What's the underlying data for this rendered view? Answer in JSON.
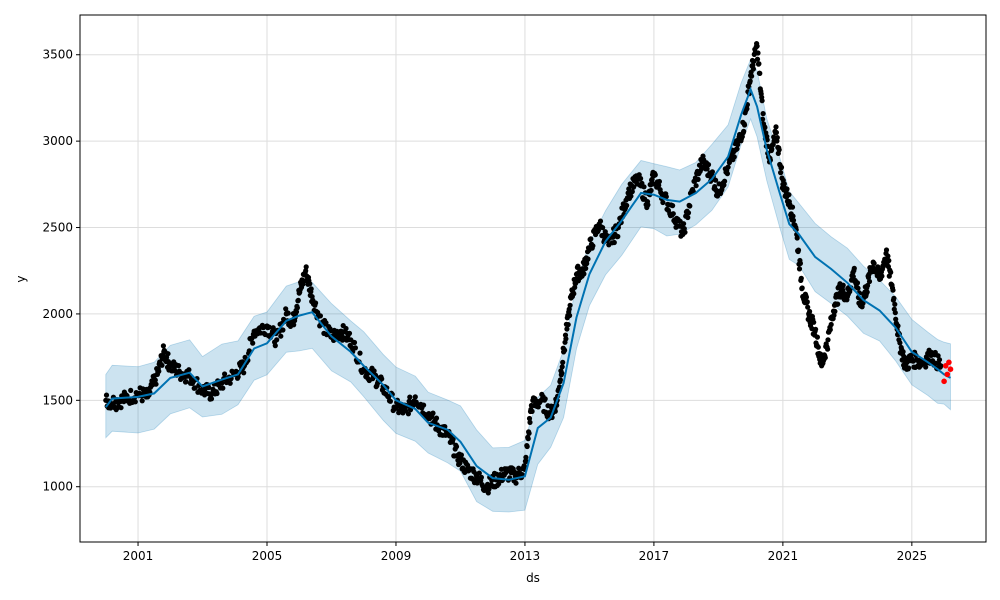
{
  "chart_data": {
    "type": "line",
    "title": "",
    "xlabel": "ds",
    "ylabel": "y",
    "xlim": [
      1999.2,
      2027.3
    ],
    "ylim": [
      680,
      3730
    ],
    "x_ticks": [
      {
        "value": 2001,
        "label": "2001"
      },
      {
        "value": 2005,
        "label": "2005"
      },
      {
        "value": 2009,
        "label": "2009"
      },
      {
        "value": 2013,
        "label": "2013"
      },
      {
        "value": 2017,
        "label": "2017"
      },
      {
        "value": 2021,
        "label": "2021"
      },
      {
        "value": 2025,
        "label": "2025"
      }
    ],
    "y_ticks": [
      {
        "value": 1000,
        "label": "1000"
      },
      {
        "value": 1500,
        "label": "1500"
      },
      {
        "value": 2000,
        "label": "2000"
      },
      {
        "value": 2500,
        "label": "2500"
      },
      {
        "value": 3000,
        "label": "3000"
      },
      {
        "value": 3500,
        "label": "3500"
      }
    ],
    "grid": true,
    "colors": {
      "forecast_line": "#0072B2",
      "uncertainty_band": "#0072B2",
      "observed_points": "#000000",
      "future_points": "#ff0000",
      "grid": "#dddddd"
    },
    "forecast": {
      "x": [
        2000.0,
        2000.2,
        2001.0,
        2001.5,
        2002.0,
        2002.6,
        2003.0,
        2003.6,
        2004.1,
        2004.6,
        2005.0,
        2005.6,
        2006.0,
        2006.4,
        2007.0,
        2007.6,
        2008.0,
        2008.6,
        2009.0,
        2009.6,
        2010.0,
        2010.6,
        2011.0,
        2011.5,
        2012.0,
        2012.5,
        2013.0,
        2013.4,
        2013.8,
        2014.2,
        2014.6,
        2015.0,
        2015.5,
        2016.0,
        2016.6,
        2017.0,
        2017.4,
        2017.8,
        2018.3,
        2018.8,
        2019.3,
        2019.7,
        2020.0,
        2020.2,
        2020.5,
        2020.9,
        2021.2,
        2021.5,
        2022.0,
        2022.5,
        2023.0,
        2023.5,
        2024.0,
        2024.5,
        2025.0,
        2025.5,
        2025.8,
        2026.0,
        2026.2
      ],
      "yhat": [
        1460,
        1510,
        1520,
        1540,
        1630,
        1660,
        1580,
        1620,
        1650,
        1800,
        1830,
        1960,
        1990,
        2010,
        1870,
        1780,
        1700,
        1590,
        1500,
        1450,
        1370,
        1330,
        1260,
        1120,
        1050,
        1040,
        1060,
        1340,
        1400,
        1600,
        1980,
        2230,
        2420,
        2540,
        2700,
        2690,
        2660,
        2650,
        2700,
        2780,
        2910,
        3150,
        3300,
        3200,
        2950,
        2700,
        2520,
        2460,
        2330,
        2260,
        2180,
        2080,
        2020,
        1920,
        1780,
        1720,
        1680,
        1650,
        1630
      ],
      "band_half_width": 190
    },
    "observed": {
      "x": [
        2000.0,
        2000.3,
        2000.6,
        2001.0,
        2001.3,
        2001.6,
        2001.8,
        2002.0,
        2002.3,
        2002.6,
        2003.0,
        2003.3,
        2003.6,
        2004.0,
        2004.3,
        2004.6,
        2005.0,
        2005.3,
        2005.6,
        2005.8,
        2006.0,
        2006.2,
        2006.4,
        2006.7,
        2007.0,
        2007.3,
        2007.6,
        2008.0,
        2008.3,
        2008.6,
        2009.0,
        2009.3,
        2009.6,
        2010.0,
        2010.3,
        2010.6,
        2010.9,
        2011.2,
        2011.5,
        2011.8,
        2012.1,
        2012.4,
        2012.7,
        2013.0,
        2013.2,
        2013.5,
        2013.8,
        2014.0,
        2014.2,
        2014.4,
        2014.6,
        2014.8,
        2015.0,
        2015.3,
        2015.6,
        2015.9,
        2016.2,
        2016.5,
        2016.8,
        2017.0,
        2017.3,
        2017.6,
        2017.9,
        2018.2,
        2018.5,
        2018.8,
        2019.0,
        2019.3,
        2019.6,
        2019.8,
        2020.0,
        2020.2,
        2020.4,
        2020.6,
        2020.8,
        2021.0,
        2021.2,
        2021.4,
        2021.6,
        2021.8,
        2022.0,
        2022.2,
        2022.4,
        2022.6,
        2022.8,
        2023.0,
        2023.2,
        2023.4,
        2023.6,
        2023.8,
        2024.0,
        2024.2,
        2024.4,
        2024.6,
        2024.8,
        2025.0,
        2025.3,
        2025.6,
        2025.9
      ],
      "y": [
        1500,
        1490,
        1510,
        1540,
        1520,
        1650,
        1780,
        1700,
        1660,
        1640,
        1560,
        1540,
        1600,
        1650,
        1700,
        1900,
        1930,
        1850,
        2000,
        1950,
        2120,
        2250,
        2100,
        1940,
        1870,
        1900,
        1850,
        1680,
        1640,
        1580,
        1460,
        1440,
        1520,
        1420,
        1350,
        1300,
        1180,
        1100,
        1060,
        1000,
        1040,
        1080,
        1060,
        1100,
        1470,
        1500,
        1420,
        1500,
        1780,
        2050,
        2230,
        2250,
        2380,
        2520,
        2400,
        2500,
        2700,
        2780,
        2650,
        2800,
        2680,
        2580,
        2460,
        2720,
        2880,
        2800,
        2700,
        2850,
        2980,
        3100,
        3380,
        3550,
        3100,
        2900,
        3050,
        2750,
        2650,
        2500,
        2150,
        2000,
        1900,
        1700,
        1850,
        2050,
        2150,
        2100,
        2250,
        2050,
        2150,
        2300,
        2200,
        2350,
        2150,
        1850,
        1700,
        1740,
        1720,
        1760,
        1700
      ]
    },
    "future_points": {
      "x": [
        2026.0,
        2026.05,
        2026.1,
        2026.15,
        2026.2
      ],
      "y": [
        1610,
        1700,
        1650,
        1720,
        1680
      ]
    }
  }
}
